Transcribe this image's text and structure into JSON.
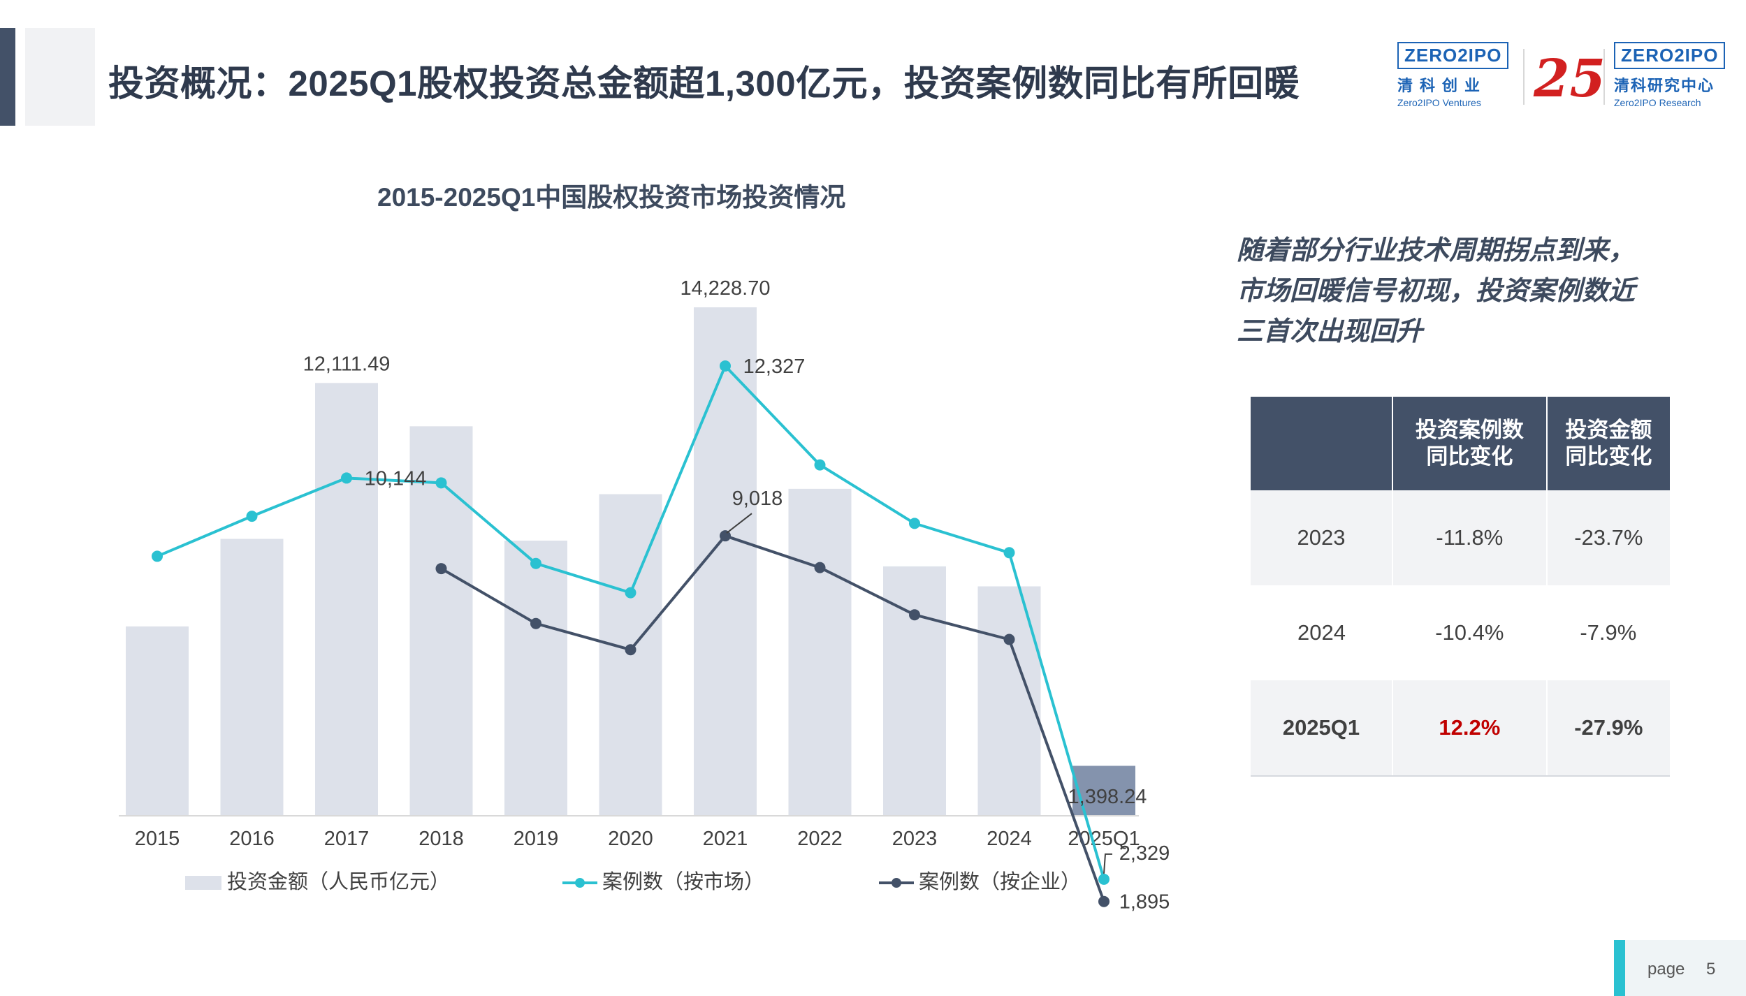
{
  "header": {
    "title": "投资概况：2025Q1股权投资总金额超1,300亿元，投资案例数同比有所回暖"
  },
  "logos": {
    "zero2ipo_ventures": {
      "badge": "ZERO2IPO",
      "cn": "清科创业",
      "en": "Zero2IPO Ventures"
    },
    "anniversary": "25",
    "zero2ipo_research": {
      "badge": "ZERO2IPO",
      "cn": "清科研究中心",
      "en": "Zero2IPO Research"
    },
    "brand_blue": "#1c63b5",
    "anniversary_red": "#d22020"
  },
  "chart_data": {
    "type": "bar",
    "title": "2015-2025Q1中国股权投资市场投资情况",
    "categories": [
      "2015",
      "2016",
      "2017",
      "2018",
      "2019",
      "2020",
      "2021",
      "2022",
      "2023",
      "2024",
      "2025Q1"
    ],
    "series": [
      {
        "name": "投资金额（人民币亿元）",
        "type": "bar",
        "values": [
          5300,
          7750,
          12111.49,
          10900,
          7700,
          9000,
          14228.7,
          9150,
          6980,
          6420,
          1398.24
        ],
        "color": "#dde1ea",
        "highlight_color": "#8493ad"
      },
      {
        "name": "案例数（按市场）",
        "type": "line",
        "values": [
          8620,
          9400,
          10144,
          10050,
          8480,
          7910,
          12327,
          10400,
          9260,
          8690,
          2329
        ],
        "color": "#2ac1d1"
      },
      {
        "name": "案例数（按企业）",
        "type": "line",
        "values": [
          null,
          null,
          null,
          8380,
          7310,
          6800,
          9018,
          8400,
          7480,
          7000,
          1895
        ],
        "color": "#435168"
      }
    ],
    "data_labels": {
      "bar": [
        null,
        null,
        "12,111.49",
        null,
        null,
        null,
        "14,228.70",
        null,
        null,
        null,
        "1,398.24"
      ],
      "market": [
        null,
        null,
        "10,144",
        null,
        null,
        null,
        "12,327",
        null,
        null,
        null,
        "2,329"
      ],
      "enterprise": [
        null,
        null,
        null,
        null,
        null,
        null,
        "9,018",
        null,
        null,
        null,
        "1,895"
      ]
    },
    "legend_position": "bottom",
    "grid": false
  },
  "bullet": {
    "text": "随着部分行业技术周期拐点到来，市场回暖信号初现，投资案例数近三首次出现回升"
  },
  "yoy_table": {
    "headers": [
      "",
      "投资案例数\n同比变化",
      "投资金额\n同比变化"
    ],
    "rows": [
      {
        "period": "2023",
        "cases": "-11.8%",
        "amount": "-23.7%"
      },
      {
        "period": "2024",
        "cases": "-10.4%",
        "amount": "-7.9%"
      },
      {
        "period": "2025Q1",
        "cases": "12.2%",
        "amount": "-27.9%"
      }
    ],
    "positive_color": "#c00000"
  },
  "footer": {
    "page_label": "page",
    "page_number": "5"
  }
}
